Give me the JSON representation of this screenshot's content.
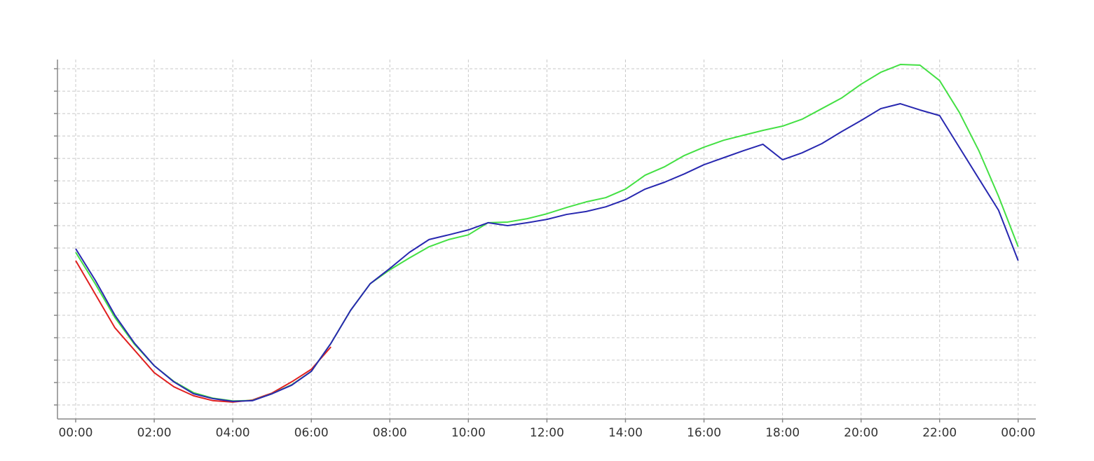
{
  "chart_data": {
    "type": "line",
    "x": [
      0,
      0.5,
      1,
      1.5,
      2,
      2.5,
      3,
      3.5,
      4,
      4.5,
      5,
      5.5,
      6,
      6.5,
      7,
      7.5,
      8,
      8.5,
      9,
      9.5,
      10,
      10.5,
      11,
      11.5,
      12,
      12.5,
      13,
      13.5,
      14,
      14.5,
      15,
      15.5,
      16,
      16.5,
      17,
      17.5,
      18,
      18.5,
      19,
      19.5,
      20,
      20.5,
      21,
      21.5,
      22,
      22.5,
      23,
      23.5,
      24
    ],
    "series": [
      {
        "color": "#e02020",
        "values": [
          7.44,
          5.94,
          4.44,
          3.44,
          2.44,
          1.81,
          1.41,
          1.19,
          1.13,
          1.22,
          1.53,
          2.03,
          2.59,
          3.59,
          null,
          null,
          null,
          null,
          null,
          null,
          null,
          null,
          null,
          null,
          null,
          null,
          null,
          null,
          null,
          null,
          null,
          null,
          null,
          null,
          null,
          null,
          null,
          null,
          null,
          null,
          null,
          null,
          null,
          null,
          null,
          null,
          null,
          null,
          null
        ]
      },
      {
        "color": "#44e044",
        "values": [
          7.81,
          6.4,
          4.9,
          3.7,
          2.75,
          2.05,
          1.55,
          1.3,
          1.18,
          1.2,
          1.5,
          1.9,
          2.5,
          3.75,
          5.22,
          6.41,
          7.03,
          7.56,
          8.06,
          8.38,
          8.59,
          9.13,
          9.16,
          9.31,
          9.53,
          9.81,
          10.06,
          10.25,
          10.63,
          11.25,
          11.63,
          12.13,
          12.5,
          12.81,
          13.03,
          13.25,
          13.44,
          13.75,
          14.22,
          14.69,
          15.31,
          15.84,
          16.19,
          16.16,
          15.47,
          14.06,
          12.34,
          10.31,
          8.06
        ]
      },
      {
        "color": "#2828b0",
        "values": [
          7.97,
          6.56,
          5.0,
          3.75,
          2.75,
          2.03,
          1.5,
          1.28,
          1.16,
          1.19,
          1.5,
          1.88,
          2.5,
          3.75,
          5.22,
          6.41,
          7.09,
          7.81,
          8.38,
          8.59,
          8.81,
          9.13,
          9.0,
          9.13,
          9.28,
          9.5,
          9.63,
          9.84,
          10.16,
          10.63,
          10.94,
          11.31,
          11.72,
          12.03,
          12.34,
          12.63,
          11.94,
          12.25,
          12.66,
          13.19,
          13.69,
          14.22,
          14.44,
          14.16,
          13.91,
          12.5,
          11.09,
          9.69,
          7.44
        ]
      }
    ],
    "xlim": [
      -0.464,
      24.45
    ],
    "xticks": [
      {
        "value": 0,
        "label": "00:00"
      },
      {
        "value": 2,
        "label": "02:00"
      },
      {
        "value": 4,
        "label": "04:00"
      },
      {
        "value": 6,
        "label": "06:00"
      },
      {
        "value": 8,
        "label": "08:00"
      },
      {
        "value": 10,
        "label": "10:00"
      },
      {
        "value": 12,
        "label": "12:00"
      },
      {
        "value": 14,
        "label": "14:00"
      },
      {
        "value": 16,
        "label": "16:00"
      },
      {
        "value": 18,
        "label": "18:00"
      },
      {
        "value": 20,
        "label": "20:00"
      },
      {
        "value": 22,
        "label": "22:00"
      },
      {
        "value": 24,
        "label": "00:00"
      }
    ],
    "ylim": [
      0.375,
      16.41
    ],
    "yticks": [
      1,
      2,
      3,
      4,
      5,
      6,
      7,
      8,
      9,
      10,
      11,
      12,
      13,
      14,
      15,
      16
    ],
    "grid": true
  }
}
